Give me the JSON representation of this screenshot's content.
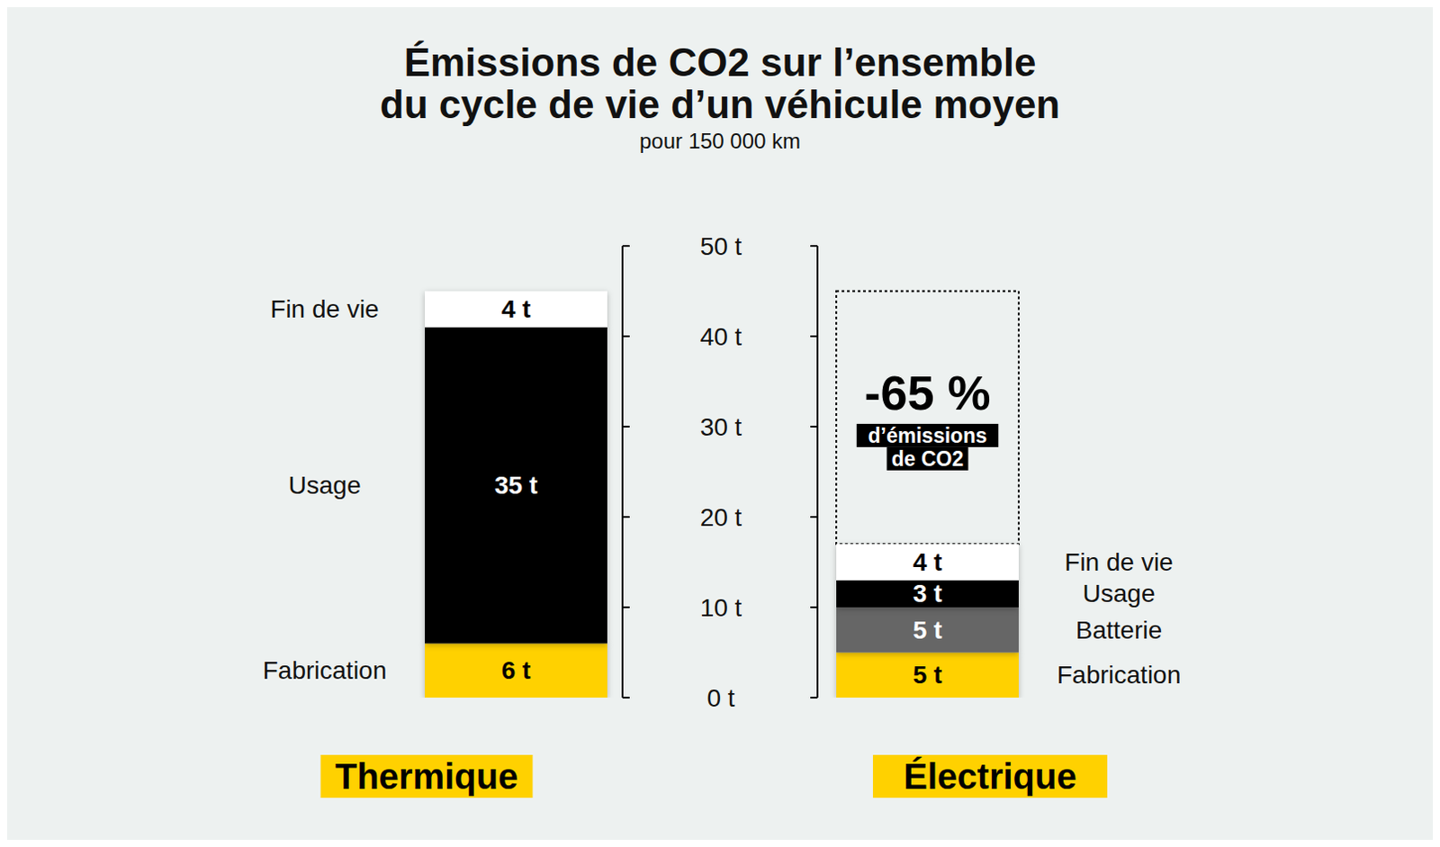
{
  "chart_data": {
    "type": "bar",
    "stacked": true,
    "data_labels": true,
    "title": "Émissions de CO2 sur l’ensemble\ndu cycle de vie d’un véhicule moyen",
    "subtitle": "pour 150 000 km",
    "categories": [
      "Thermique",
      "Électrique"
    ],
    "series": [
      {
        "name": "Fabrication",
        "color": "#ffd100",
        "values": [
          6,
          5
        ],
        "value_labels": [
          "6 t",
          "5 t"
        ]
      },
      {
        "name": "Batterie",
        "color": "#666666",
        "values": [
          null,
          5
        ],
        "value_labels": [
          null,
          "5 t"
        ]
      },
      {
        "name": "Usage",
        "color": "#000000",
        "values": [
          35,
          3
        ],
        "value_labels": [
          "35 t",
          "3 t"
        ]
      },
      {
        "name": "Fin de vie",
        "color": "#ffffff",
        "values": [
          4,
          4
        ],
        "value_labels": [
          "4 t",
          "4 t"
        ]
      }
    ],
    "ylim": [
      0,
      50
    ],
    "yticks": [
      {
        "value": 0,
        "label": "0 t"
      },
      {
        "value": 10,
        "label": "10 t"
      },
      {
        "value": 20,
        "label": "20 t"
      },
      {
        "value": 30,
        "label": "30 t"
      },
      {
        "value": 40,
        "label": "40 t"
      },
      {
        "value": 50,
        "label": "50 t"
      }
    ],
    "annotation": {
      "text": "-65 %",
      "text_lines": [
        "d’émissions",
        "de CO2"
      ]
    }
  }
}
